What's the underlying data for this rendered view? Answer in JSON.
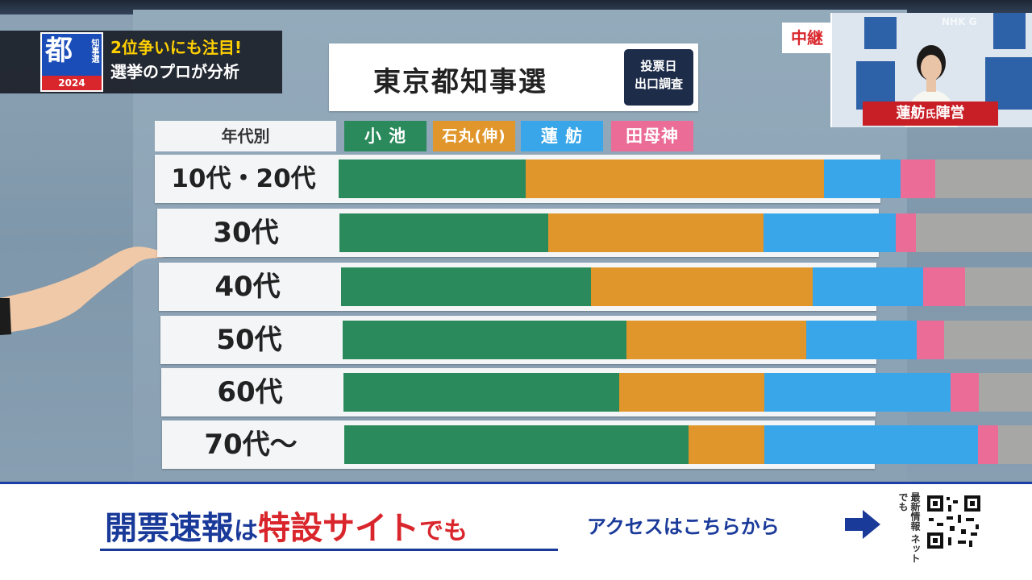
{
  "logo": {
    "kanji": "都",
    "sub": "知事選",
    "year": "2024",
    "headline_1": "2位争いにも注目!",
    "headline_2": "選挙のプロが分析"
  },
  "title_card": {
    "title": "東京都知事選",
    "badge_line_1": "投票日",
    "badge_line_2": "出口調査"
  },
  "live": {
    "tag": "中継",
    "name": "蓮舫",
    "name_suffix": "氏",
    "name_tail": "陣営",
    "mark": "NHK G"
  },
  "legend": {
    "label": "年代別",
    "items": [
      {
        "name": "小 池",
        "color": "#2a8a5c"
      },
      {
        "name": "石丸(伸)",
        "color": "#e0962a"
      },
      {
        "name": "蓮 舫",
        "color": "#38a6e8"
      },
      {
        "name": "田母神",
        "color": "#ea6c97"
      }
    ]
  },
  "colors": {
    "koike": "#2a8a5c",
    "ishimaru": "#e0962a",
    "renho": "#38a6e8",
    "tamogami": "#ea6c97",
    "other": "#a7a7a5"
  },
  "chart_data": {
    "type": "bar",
    "orientation": "horizontal-stacked",
    "categories": [
      "10代・20代",
      "30代",
      "40代",
      "50代",
      "60代",
      "70代〜"
    ],
    "series": [
      {
        "name": "小池",
        "values": [
          27,
          30,
          36,
          41,
          40,
          50
        ]
      },
      {
        "name": "石丸(伸)",
        "values": [
          43,
          31,
          32,
          26,
          21,
          11
        ]
      },
      {
        "name": "蓮舫",
        "values": [
          11,
          19,
          16,
          16,
          27,
          31
        ]
      },
      {
        "name": "田母神",
        "values": [
          5,
          3,
          6,
          4,
          4,
          3
        ]
      },
      {
        "values": [
          14,
          17,
          10,
          13,
          8,
          5
        ]
      }
    ],
    "legend_position": "top"
  },
  "banner": {
    "main_1": "開票速報",
    "main_2": "は",
    "main_3": "特設サイト",
    "main_4": "でも",
    "access": "アクセスはこちらから",
    "side": "最新情報 ネットでも"
  }
}
